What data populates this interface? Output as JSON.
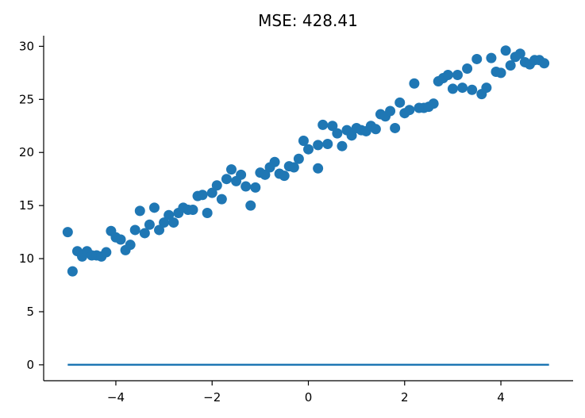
{
  "chart_data": {
    "type": "scatter",
    "title": "MSE: 428.41",
    "xlabel": "",
    "ylabel": "",
    "xlim": [
      -5.5,
      5.5
    ],
    "ylim": [
      -1.5,
      31
    ],
    "x_ticks": [
      -4,
      -2,
      0,
      2,
      4
    ],
    "x_tick_labels": [
      "−4",
      "−2",
      "0",
      "2",
      "4"
    ],
    "y_ticks": [
      0,
      5,
      10,
      15,
      20,
      25,
      30
    ],
    "y_tick_labels": [
      "0",
      "5",
      "10",
      "15",
      "20",
      "25",
      "30"
    ],
    "grid": false,
    "legend": "none",
    "point_color": "#1f77b4",
    "line_color": "#1f77b4",
    "fit_line": {
      "x": [
        -5,
        5
      ],
      "y": [
        0,
        0
      ]
    },
    "points": [
      [
        -5.0,
        12.5
      ],
      [
        -4.9,
        8.8
      ],
      [
        -4.8,
        10.7
      ],
      [
        -4.7,
        10.2
      ],
      [
        -4.6,
        10.7
      ],
      [
        -4.5,
        10.3
      ],
      [
        -4.4,
        10.3
      ],
      [
        -4.3,
        10.2
      ],
      [
        -4.2,
        10.6
      ],
      [
        -4.1,
        12.6
      ],
      [
        -4.0,
        12.0
      ],
      [
        -3.9,
        11.8
      ],
      [
        -3.8,
        10.8
      ],
      [
        -3.7,
        11.3
      ],
      [
        -3.6,
        12.7
      ],
      [
        -3.5,
        14.5
      ],
      [
        -3.4,
        12.4
      ],
      [
        -3.3,
        13.2
      ],
      [
        -3.2,
        14.8
      ],
      [
        -3.1,
        12.7
      ],
      [
        -3.0,
        13.4
      ],
      [
        -2.9,
        14.1
      ],
      [
        -2.8,
        13.4
      ],
      [
        -2.7,
        14.3
      ],
      [
        -2.6,
        14.8
      ],
      [
        -2.5,
        14.6
      ],
      [
        -2.4,
        14.6
      ],
      [
        -2.3,
        15.9
      ],
      [
        -2.2,
        16.0
      ],
      [
        -2.1,
        14.3
      ],
      [
        -2.0,
        16.2
      ],
      [
        -1.9,
        16.9
      ],
      [
        -1.8,
        15.6
      ],
      [
        -1.7,
        17.5
      ],
      [
        -1.6,
        18.4
      ],
      [
        -1.5,
        17.3
      ],
      [
        -1.4,
        17.9
      ],
      [
        -1.3,
        16.8
      ],
      [
        -1.2,
        15.0
      ],
      [
        -1.1,
        16.7
      ],
      [
        -1.0,
        18.1
      ],
      [
        -0.9,
        17.9
      ],
      [
        -0.8,
        18.6
      ],
      [
        -0.7,
        19.1
      ],
      [
        -0.6,
        18.0
      ],
      [
        -0.5,
        17.8
      ],
      [
        -0.4,
        18.7
      ],
      [
        -0.3,
        18.6
      ],
      [
        -0.2,
        19.4
      ],
      [
        -0.1,
        21.1
      ],
      [
        0.0,
        20.3
      ],
      [
        0.2,
        18.5
      ],
      [
        0.2,
        20.7
      ],
      [
        0.3,
        22.6
      ],
      [
        0.4,
        20.8
      ],
      [
        0.5,
        22.5
      ],
      [
        0.6,
        21.8
      ],
      [
        0.7,
        20.6
      ],
      [
        0.8,
        22.1
      ],
      [
        0.9,
        21.6
      ],
      [
        1.0,
        22.3
      ],
      [
        1.1,
        22.1
      ],
      [
        1.2,
        22.0
      ],
      [
        1.3,
        22.5
      ],
      [
        1.4,
        22.2
      ],
      [
        1.5,
        23.6
      ],
      [
        1.6,
        23.4
      ],
      [
        1.7,
        23.9
      ],
      [
        1.8,
        22.3
      ],
      [
        1.9,
        24.7
      ],
      [
        2.0,
        23.7
      ],
      [
        2.1,
        24.0
      ],
      [
        2.2,
        26.5
      ],
      [
        2.3,
        24.2
      ],
      [
        2.4,
        24.2
      ],
      [
        2.5,
        24.3
      ],
      [
        2.6,
        24.6
      ],
      [
        2.7,
        26.7
      ],
      [
        2.8,
        27.0
      ],
      [
        2.9,
        27.3
      ],
      [
        3.0,
        26.0
      ],
      [
        3.1,
        27.3
      ],
      [
        3.2,
        26.1
      ],
      [
        3.3,
        27.9
      ],
      [
        3.4,
        25.9
      ],
      [
        3.5,
        28.8
      ],
      [
        3.6,
        25.5
      ],
      [
        3.7,
        26.1
      ],
      [
        3.8,
        28.9
      ],
      [
        3.9,
        27.6
      ],
      [
        4.0,
        27.5
      ],
      [
        4.1,
        29.6
      ],
      [
        4.2,
        28.2
      ],
      [
        4.3,
        29.0
      ],
      [
        4.4,
        29.3
      ],
      [
        4.5,
        28.5
      ],
      [
        4.6,
        28.3
      ],
      [
        4.7,
        28.7
      ],
      [
        4.8,
        28.7
      ],
      [
        4.9,
        28.4
      ]
    ]
  }
}
